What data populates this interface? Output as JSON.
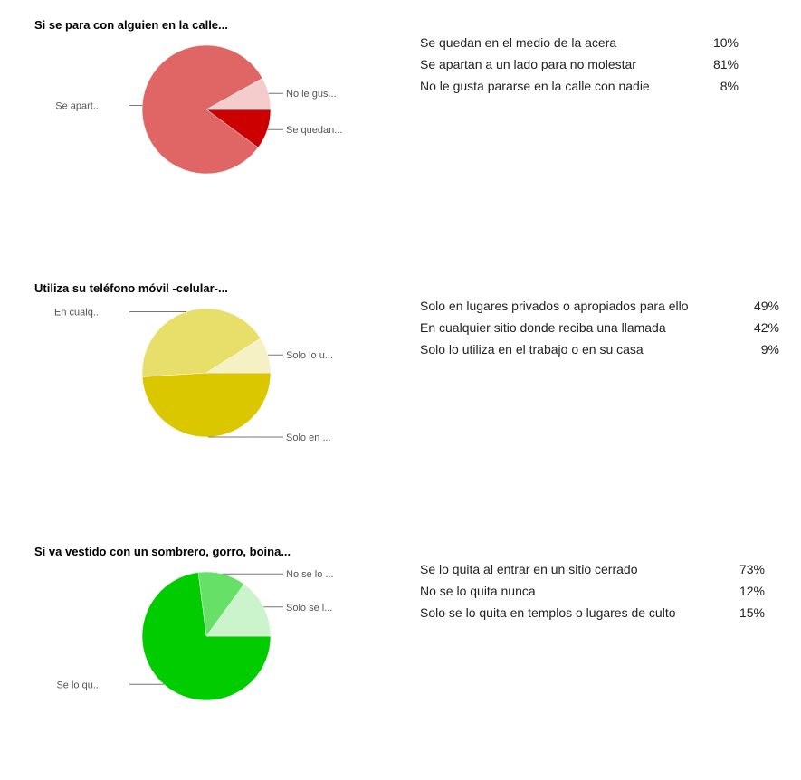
{
  "chart_data": [
    {
      "type": "pie",
      "title": "Si se para con alguien en la calle...",
      "colors": [
        "#cc0000",
        "#e06666",
        "#f4cccc"
      ],
      "slices": [
        {
          "label": "Se quedan en el medio de la acera",
          "value": 10,
          "pct_label": "10%",
          "short_label": "Se quedan..."
        },
        {
          "label": "Se apartan a un lado para no molestar",
          "value": 81,
          "pct_label": "81%",
          "short_label": "Se apart..."
        },
        {
          "label": "No le gusta pararse en la calle con nadie",
          "value": 8,
          "pct_label": "8%",
          "short_label": "No le gus..."
        }
      ]
    },
    {
      "type": "pie",
      "title": "Utiliza su teléfono móvil -celular-...",
      "colors": [
        "#dbc700",
        "#e8df6b",
        "#f6f1c4"
      ],
      "slices": [
        {
          "label": "Solo en lugares privados o apropiados para ello",
          "value": 49,
          "pct_label": "49%",
          "short_label": "Solo en ..."
        },
        {
          "label": "En cualquier sitio donde reciba una llamada",
          "value": 42,
          "pct_label": "42%",
          "short_label": "En cualq..."
        },
        {
          "label": "Solo lo utiliza en el trabajo o en su casa",
          "value": 9,
          "pct_label": "9%",
          "short_label": "Solo lo u..."
        }
      ]
    },
    {
      "type": "pie",
      "title": "Si va vestido con un sombrero, gorro, boina...",
      "colors": [
        "#00cc00",
        "#66e066",
        "#ccf4cc"
      ],
      "slices": [
        {
          "label": "Se lo quita al entrar en un sitio cerrado",
          "value": 73,
          "pct_label": "73%",
          "short_label": "Se lo qu..."
        },
        {
          "label": "No se lo quita nunca",
          "value": 12,
          "pct_label": "12%",
          "short_label": "No se lo ..."
        },
        {
          "label": "Solo se lo quita en templos o lugares de culto",
          "value": 15,
          "pct_label": "15%",
          "short_label": "Solo se l..."
        }
      ]
    }
  ]
}
